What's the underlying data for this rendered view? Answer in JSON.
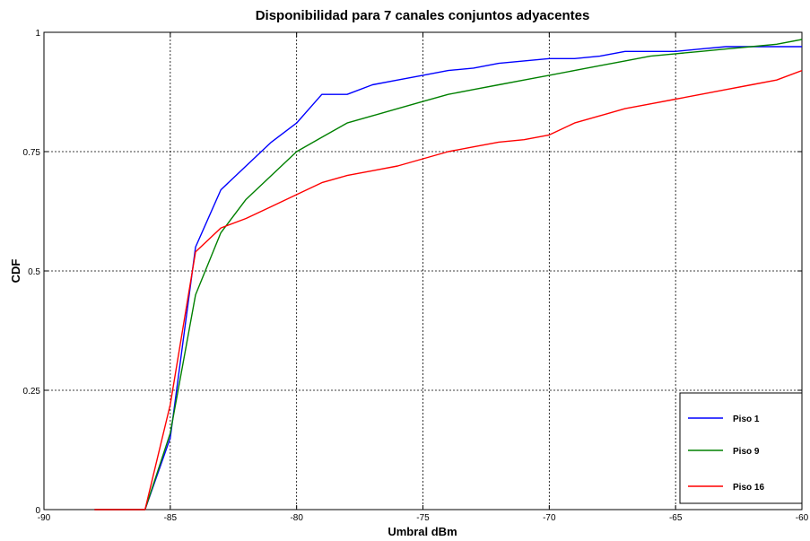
{
  "chart_data": {
    "type": "line",
    "title": "Disponibilidad para 7 canales conjuntos adyacentes",
    "xlabel": "Umbral dBm",
    "ylabel": "CDF",
    "xlim": [
      -90,
      -60
    ],
    "ylim": [
      0,
      1
    ],
    "x_ticks": [
      -90,
      -85,
      -80,
      -75,
      -70,
      -65,
      -60
    ],
    "x_tick_labels": [
      "-90",
      "-85",
      "-80",
      "-75",
      "-70",
      "-65",
      "-60"
    ],
    "y_ticks": [
      0,
      0.25,
      0.5,
      0.75,
      1
    ],
    "y_tick_labels": [
      "0",
      "0.25",
      "0.5",
      "0.75",
      "1"
    ],
    "grid": true,
    "legend_position": "bottom-right",
    "series": [
      {
        "name": "Piso 1",
        "color": "#0000ff",
        "points": [
          [
            -88,
            0
          ],
          [
            -86,
            0
          ],
          [
            -85,
            0.15
          ],
          [
            -84,
            0.55
          ],
          [
            -83,
            0.67
          ],
          [
            -82,
            0.72
          ],
          [
            -81,
            0.77
          ],
          [
            -80,
            0.81
          ],
          [
            -79,
            0.87
          ],
          [
            -78,
            0.87
          ],
          [
            -77,
            0.89
          ],
          [
            -76,
            0.9
          ],
          [
            -75,
            0.91
          ],
          [
            -74,
            0.92
          ],
          [
            -73,
            0.925
          ],
          [
            -72,
            0.935
          ],
          [
            -71,
            0.94
          ],
          [
            -70,
            0.945
          ],
          [
            -69,
            0.945
          ],
          [
            -68,
            0.95
          ],
          [
            -67,
            0.96
          ],
          [
            -66,
            0.96
          ],
          [
            -65,
            0.96
          ],
          [
            -64,
            0.965
          ],
          [
            -63,
            0.97
          ],
          [
            -62,
            0.97
          ],
          [
            -61,
            0.97
          ],
          [
            -60,
            0.97
          ]
        ]
      },
      {
        "name": "Piso 9",
        "color": "#008000",
        "points": [
          [
            -88,
            0
          ],
          [
            -86,
            0
          ],
          [
            -85,
            0.16
          ],
          [
            -84,
            0.45
          ],
          [
            -83,
            0.58
          ],
          [
            -82,
            0.65
          ],
          [
            -81,
            0.7
          ],
          [
            -80,
            0.75
          ],
          [
            -79,
            0.78
          ],
          [
            -78,
            0.81
          ],
          [
            -77,
            0.825
          ],
          [
            -76,
            0.84
          ],
          [
            -75,
            0.855
          ],
          [
            -74,
            0.87
          ],
          [
            -73,
            0.88
          ],
          [
            -72,
            0.89
          ],
          [
            -71,
            0.9
          ],
          [
            -70,
            0.91
          ],
          [
            -69,
            0.92
          ],
          [
            -68,
            0.93
          ],
          [
            -67,
            0.94
          ],
          [
            -66,
            0.95
          ],
          [
            -65,
            0.955
          ],
          [
            -64,
            0.96
          ],
          [
            -63,
            0.965
          ],
          [
            -62,
            0.97
          ],
          [
            -61,
            0.975
          ],
          [
            -60,
            0.985
          ]
        ]
      },
      {
        "name": "Piso 16",
        "color": "#ff0000",
        "points": [
          [
            -88,
            0
          ],
          [
            -86,
            0
          ],
          [
            -85,
            0.22
          ],
          [
            -84,
            0.54
          ],
          [
            -83,
            0.59
          ],
          [
            -82,
            0.61
          ],
          [
            -81,
            0.635
          ],
          [
            -80,
            0.66
          ],
          [
            -79,
            0.685
          ],
          [
            -78,
            0.7
          ],
          [
            -77,
            0.71
          ],
          [
            -76,
            0.72
          ],
          [
            -75,
            0.735
          ],
          [
            -74,
            0.75
          ],
          [
            -73,
            0.76
          ],
          [
            -72,
            0.77
          ],
          [
            -71,
            0.775
          ],
          [
            -70,
            0.785
          ],
          [
            -69,
            0.81
          ],
          [
            -68,
            0.825
          ],
          [
            -67,
            0.84
          ],
          [
            -66,
            0.85
          ],
          [
            -65,
            0.86
          ],
          [
            -64,
            0.87
          ],
          [
            -63,
            0.88
          ],
          [
            -62,
            0.89
          ],
          [
            -61,
            0.9
          ],
          [
            -60,
            0.92
          ]
        ]
      }
    ]
  }
}
